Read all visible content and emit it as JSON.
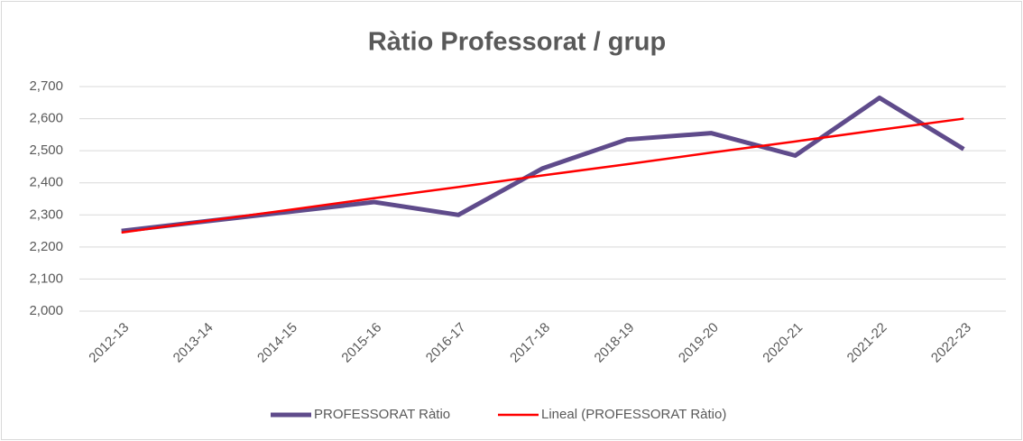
{
  "chart_data": {
    "type": "line",
    "title": "Ràtio Professorat / grup",
    "categories": [
      "2012-13",
      "2013-14",
      "2014-15",
      "2015-16",
      "2016-17",
      "2017-18",
      "2018-19",
      "2019-20",
      "2020-21",
      "2021-22",
      "2022-23"
    ],
    "series": [
      {
        "name": "PROFESSORAT Ràtio",
        "color": "#5f4b8b",
        "values": [
          2.25,
          2.28,
          2.31,
          2.34,
          2.3,
          2.445,
          2.535,
          2.555,
          2.485,
          2.665,
          2.505
        ]
      },
      {
        "name": "Lineal (PROFESSORAT Ràtio)",
        "color": "#ff0000",
        "values": [
          2.245,
          2.281,
          2.316,
          2.352,
          2.387,
          2.423,
          2.458,
          2.494,
          2.529,
          2.565,
          2.6
        ]
      }
    ],
    "ylim": [
      2.0,
      2.7
    ],
    "yticks": [
      {
        "value": 2.0,
        "label": "2,000"
      },
      {
        "value": 2.1,
        "label": "2,100"
      },
      {
        "value": 2.2,
        "label": "2,200"
      },
      {
        "value": 2.3,
        "label": "2,300"
      },
      {
        "value": 2.4,
        "label": "2,400"
      },
      {
        "value": 2.5,
        "label": "2,500"
      },
      {
        "value": 2.6,
        "label": "2,600"
      },
      {
        "value": 2.7,
        "label": "2,700"
      }
    ],
    "grid": true,
    "legend": "bottom"
  }
}
